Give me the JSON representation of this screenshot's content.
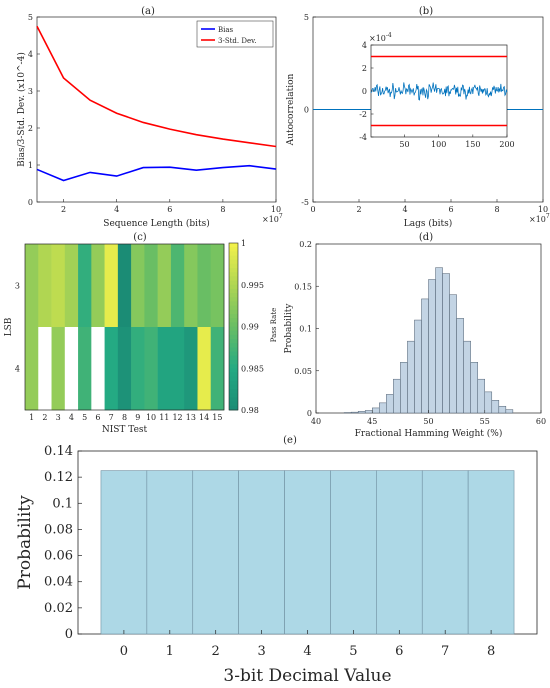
{
  "panel_labels": {
    "a": "(a)",
    "b": "(b)",
    "c": "(c)",
    "d": "(d)",
    "e": "(e)"
  },
  "chart_data": [
    {
      "id": "a",
      "type": "line",
      "xlabel": "Sequence Length (bits)",
      "ylabel": "Bias/3-Std. Dev. (x10^-4)",
      "x_exponent": "×10^7",
      "xlim": [
        1,
        10
      ],
      "ylim": [
        0,
        5
      ],
      "xticks": [
        2,
        4,
        6,
        8,
        10
      ],
      "yticks": [
        0,
        1,
        2,
        3,
        4,
        5
      ],
      "x": [
        1,
        2,
        3,
        4,
        5,
        6,
        7,
        8,
        9,
        10
      ],
      "series": [
        {
          "name": "Bias",
          "color": "#0000ff",
          "values": [
            0.88,
            0.58,
            0.8,
            0.7,
            0.93,
            0.94,
            0.86,
            0.93,
            0.98,
            0.89
          ]
        },
        {
          "name": "3-Std. Dev.",
          "color": "#ff0000",
          "values": [
            4.75,
            3.35,
            2.75,
            2.4,
            2.15,
            1.97,
            1.82,
            1.7,
            1.6,
            1.5
          ]
        }
      ],
      "legend": "top-right"
    },
    {
      "id": "b",
      "type": "line",
      "xlabel": "Lags (bits)",
      "ylabel": "Autocorrelation",
      "x_exponent": "×10^7",
      "xlim": [
        0,
        10
      ],
      "ylim": [
        -5,
        5
      ],
      "xticks": [
        0,
        2,
        4,
        6,
        8,
        10
      ],
      "yticks": [
        -5,
        0,
        5
      ],
      "series": [
        {
          "name": "",
          "color": "#0072bd",
          "x": [
            0,
            10
          ],
          "values": [
            0,
            0
          ]
        }
      ],
      "inset": {
        "exponent": "×10^-4",
        "xlim": [
          1,
          200
        ],
        "ylim": [
          -4,
          4
        ],
        "xticks": [
          50,
          100,
          150,
          200
        ],
        "yticks": [
          -4,
          -2,
          0,
          2,
          4
        ],
        "bounds": [
          3,
          -3
        ],
        "bound_color": "#ff0000",
        "noise_color": "#0072bd",
        "noise_amplitude": 0.5,
        "noise_points": 200
      }
    },
    {
      "id": "c",
      "type": "heatmap",
      "xlabel": "NIST Test",
      "ylabel": "LSB",
      "colorbar_label": "Pass Rate",
      "x_categories": [
        "1",
        "2",
        "3",
        "4",
        "5",
        "6",
        "7",
        "8",
        "9",
        "10",
        "11",
        "12",
        "13",
        "14",
        "15"
      ],
      "y_categories": [
        "3",
        "4"
      ],
      "clim": [
        0.98,
        1
      ],
      "colorbar_ticks": [
        "1",
        "0.995",
        "0.99",
        "0.985",
        "0.98"
      ],
      "values": [
        [
          0.993,
          0.995,
          0.996,
          0.994,
          0.986,
          0.993,
          0.999,
          0.98,
          0.992,
          0.99,
          0.993,
          0.988,
          0.992,
          0.99,
          0.991
        ],
        [
          0.993,
          1.001,
          0.993,
          1.001,
          0.987,
          1.001,
          0.985,
          0.981,
          0.986,
          0.987,
          0.984,
          0.984,
          0.982,
          0.999,
          0.987
        ]
      ]
    },
    {
      "id": "d",
      "type": "bar",
      "xlabel": "Fractional Hamming Weight (%)",
      "ylabel": "Probability",
      "xlim": [
        40,
        60
      ],
      "ylim": [
        0,
        0.2
      ],
      "xticks": [
        40,
        45,
        50,
        55,
        60
      ],
      "yticks": [
        0,
        0.05,
        0.1,
        0.15,
        0.2
      ],
      "bin_width": 0.625,
      "bin_start": 42.5,
      "values": [
        0.0005,
        0.001,
        0.002,
        0.003,
        0.006,
        0.012,
        0.022,
        0.04,
        0.06,
        0.085,
        0.11,
        0.135,
        0.158,
        0.172,
        0.165,
        0.14,
        0.112,
        0.085,
        0.06,
        0.04,
        0.025,
        0.015,
        0.008,
        0.004
      ],
      "color": "#c3d4e4"
    },
    {
      "id": "e",
      "type": "bar",
      "xlabel": "3-bit Decimal Value",
      "ylabel": "Probability",
      "categories": [
        "0",
        "1",
        "2",
        "3",
        "4",
        "5",
        "6",
        "7",
        "8"
      ],
      "bin_edges": [
        -0.5,
        0.5,
        1.5,
        2.5,
        3.5,
        4.5,
        5.5,
        6.5,
        7.5,
        8.5
      ],
      "values": [
        0.125,
        0.125,
        0.125,
        0.125,
        0.125,
        0.125,
        0.125,
        0.125,
        0.125
      ],
      "xlim": [
        -1,
        9
      ],
      "ylim": [
        0,
        0.14
      ],
      "yticks": [
        "0",
        "0.02",
        "0.04",
        "0.06",
        "0.08",
        "0.1",
        "0.12",
        "0.14"
      ],
      "color": "#add8e6"
    }
  ]
}
